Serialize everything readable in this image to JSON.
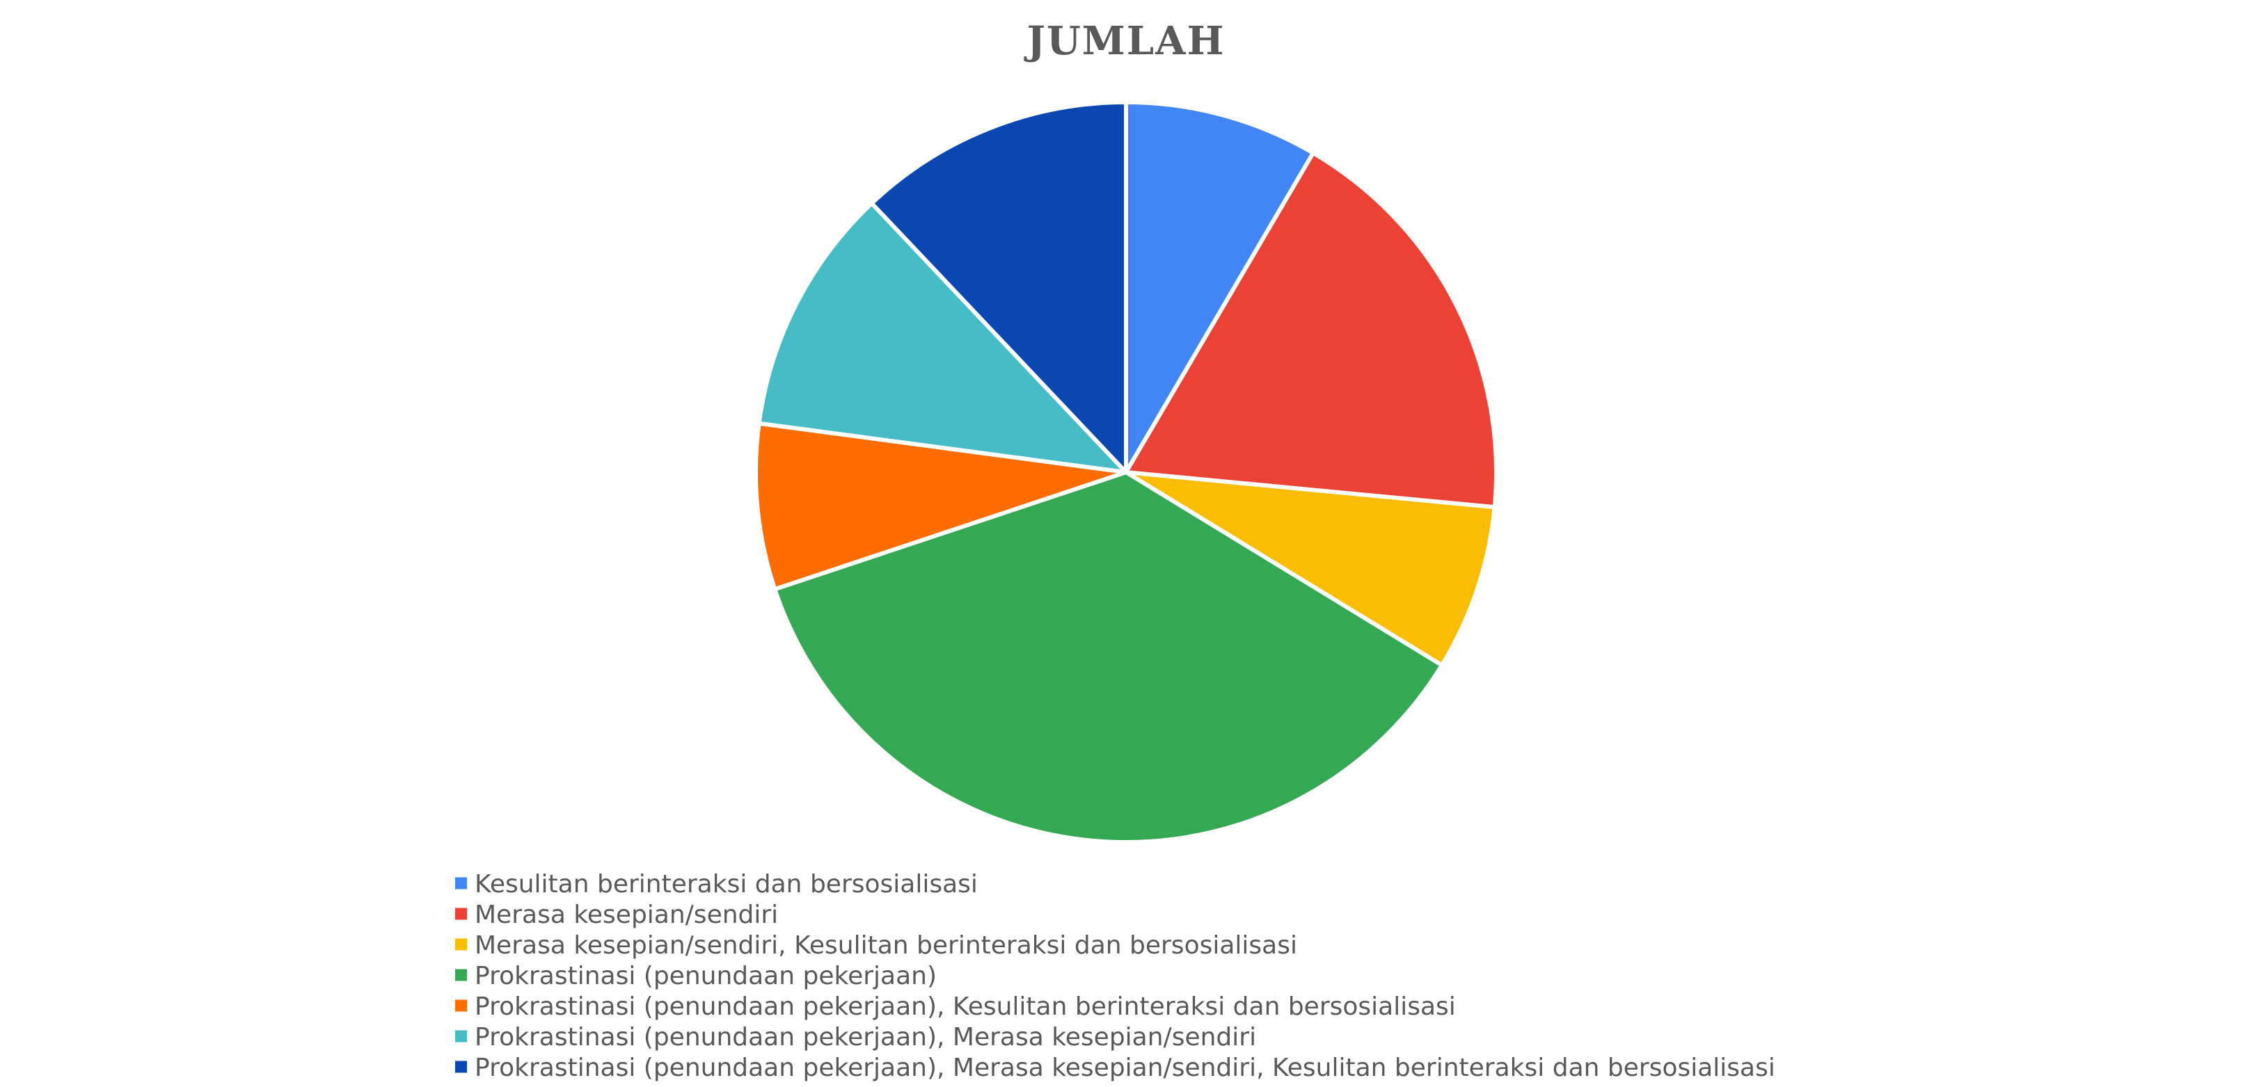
{
  "chart_data": {
    "type": "pie",
    "title": "JUMLAH",
    "legend_position": "bottom",
    "start_angle": "12 o'clock",
    "direction": "clockwise",
    "categories": [
      "Kesulitan berinteraksi dan bersosialisasi",
      "Merasa kesepian/sendiri",
      "Merasa kesepian/sendiri, Kesulitan berinteraksi dan bersosialisasi",
      "Prokrastinasi (penundaan pekerjaan)",
      "Prokrastinasi (penundaan pekerjaan), Kesulitan berinteraksi dan bersosialisasi",
      "Prokrastinasi (penundaan pekerjaan), Merasa kesepian/sendiri",
      "Prokrastinasi (penundaan pekerjaan), Merasa kesepian/sendiri, Kesulitan berinteraksi dan bersosialisasi"
    ],
    "values": [
      3.5,
      7.5,
      3,
      15,
      3,
      4.5,
      5
    ],
    "colors": [
      "#4285F4",
      "#EA4335",
      "#FBBC04",
      "#34A853",
      "#FF6D01",
      "#46BDC6",
      "#0B47B0"
    ]
  }
}
